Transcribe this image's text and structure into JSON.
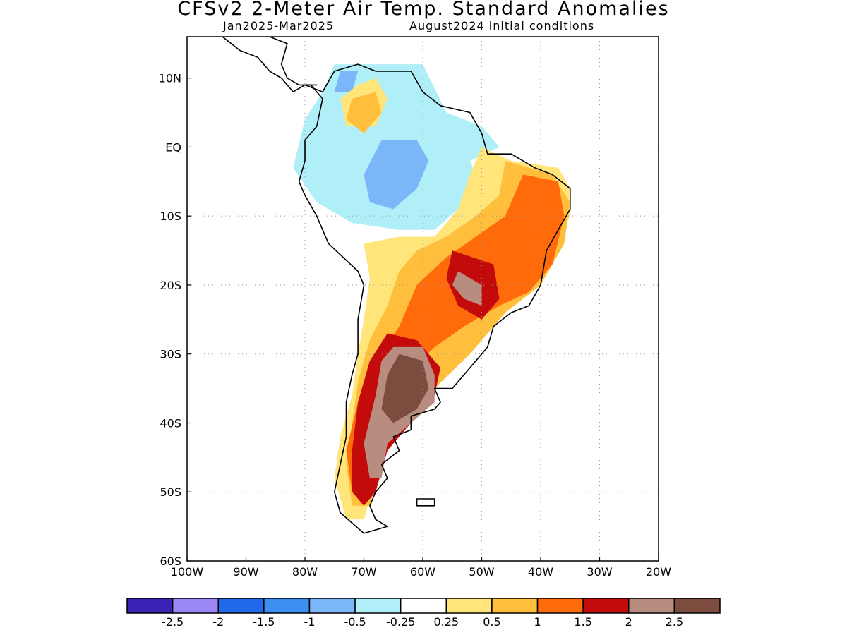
{
  "title": "CFSv2 2-Meter Air Temp. Standard Anomalies",
  "subtitle_period": "Jan2025-Mar2025",
  "subtitle_init": "August2024 initial conditions",
  "map": {
    "lon_range": [
      -100,
      -20
    ],
    "lat_range": [
      -60,
      16
    ],
    "lon_ticks": [
      {
        "value": -100,
        "label": "100W"
      },
      {
        "value": -90,
        "label": "90W"
      },
      {
        "value": -80,
        "label": "80W"
      },
      {
        "value": -70,
        "label": "70W"
      },
      {
        "value": -60,
        "label": "60W"
      },
      {
        "value": -50,
        "label": "50W"
      },
      {
        "value": -40,
        "label": "40W"
      },
      {
        "value": -30,
        "label": "30W"
      },
      {
        "value": -20,
        "label": "20W"
      }
    ],
    "lat_ticks": [
      {
        "value": 10,
        "label": "10N"
      },
      {
        "value": 0,
        "label": "EQ"
      },
      {
        "value": -10,
        "label": "10S"
      },
      {
        "value": -20,
        "label": "20S"
      },
      {
        "value": -30,
        "label": "30S"
      },
      {
        "value": -40,
        "label": "40S"
      },
      {
        "value": -50,
        "label": "50S"
      },
      {
        "value": -60,
        "label": "60S"
      }
    ],
    "grid": "dotted"
  },
  "colorbar": {
    "colors": [
      "#3b22b4",
      "#9b87f5",
      "#1f69ea",
      "#3b90f0",
      "#7bb6f8",
      "#b0eef8",
      "#ffffff",
      "#ffe57a",
      "#ffbe3c",
      "#ff6a0a",
      "#c40b0b",
      "#b88c7e",
      "#7c4c3e"
    ],
    "labels": [
      "-2.5",
      "-2",
      "-1.5",
      "-1",
      "-0.5",
      "-0.25",
      "0.25",
      "0.5",
      "1",
      "1.5",
      "2",
      "2.5"
    ]
  },
  "anomaly_regions": [
    {
      "level": "-0.25",
      "color": "#b0eef8",
      "points": [
        [
          -75,
          12
        ],
        [
          -60,
          12
        ],
        [
          -56,
          5
        ],
        [
          -50,
          3
        ],
        [
          -47,
          0
        ],
        [
          -52,
          -2
        ],
        [
          -50,
          -6
        ],
        [
          -54,
          -9
        ],
        [
          -58,
          -12
        ],
        [
          -64,
          -12
        ],
        [
          -72,
          -11
        ],
        [
          -78,
          -8
        ],
        [
          -82,
          -3
        ],
        [
          -80,
          4
        ],
        [
          -77,
          8
        ]
      ]
    },
    {
      "level": "-0.5",
      "color": "#7bb6f8",
      "points": [
        [
          -67,
          1
        ],
        [
          -61,
          1
        ],
        [
          -59,
          -2
        ],
        [
          -61,
          -6
        ],
        [
          -65,
          -9
        ],
        [
          -69,
          -8
        ],
        [
          -70,
          -4
        ]
      ]
    },
    {
      "level": "-0.5",
      "color": "#7bb6f8",
      "points": [
        [
          -74,
          11
        ],
        [
          -71,
          11
        ],
        [
          -72,
          8
        ],
        [
          -75,
          8
        ]
      ]
    },
    {
      "level": "0.5",
      "color": "#ffe57a",
      "points": [
        [
          -50,
          0
        ],
        [
          -45,
          -2
        ],
        [
          -37,
          -3
        ],
        [
          -35,
          -6
        ],
        [
          -35,
          -10
        ],
        [
          -38,
          -15
        ],
        [
          -40,
          -20
        ],
        [
          -45,
          -23
        ],
        [
          -50,
          -27
        ],
        [
          -53,
          -30
        ],
        [
          -58,
          -33
        ],
        [
          -63,
          -38
        ],
        [
          -66,
          -42
        ],
        [
          -68,
          -48
        ],
        [
          -70,
          -54
        ],
        [
          -73,
          -54
        ],
        [
          -75,
          -48
        ],
        [
          -74,
          -42
        ],
        [
          -72,
          -36
        ],
        [
          -71,
          -30
        ],
        [
          -70,
          -25
        ],
        [
          -69,
          -19
        ],
        [
          -70,
          -14
        ],
        [
          -64,
          -13
        ],
        [
          -58,
          -13
        ],
        [
          -54,
          -9
        ],
        [
          -52,
          -4
        ]
      ]
    },
    {
      "level": "0.5",
      "color": "#ffe57a",
      "points": [
        [
          -71,
          9
        ],
        [
          -68,
          10
        ],
        [
          -66,
          7
        ],
        [
          -68,
          3
        ],
        [
          -73,
          3
        ],
        [
          -74,
          7
        ]
      ]
    },
    {
      "level": "1",
      "color": "#ffbe3c",
      "points": [
        [
          -46,
          -2
        ],
        [
          -38,
          -4
        ],
        [
          -35,
          -8
        ],
        [
          -36,
          -14
        ],
        [
          -40,
          -20
        ],
        [
          -46,
          -24
        ],
        [
          -52,
          -30
        ],
        [
          -58,
          -35
        ],
        [
          -64,
          -40
        ],
        [
          -67,
          -46
        ],
        [
          -69,
          -52
        ],
        [
          -72,
          -52
        ],
        [
          -73,
          -46
        ],
        [
          -72,
          -40
        ],
        [
          -71,
          -34
        ],
        [
          -69,
          -28
        ],
        [
          -66,
          -23
        ],
        [
          -64,
          -18
        ],
        [
          -61,
          -15
        ],
        [
          -56,
          -13
        ],
        [
          -51,
          -10
        ],
        [
          -47,
          -7
        ]
      ]
    },
    {
      "level": "1",
      "color": "#ffbe3c",
      "points": [
        [
          -72,
          7
        ],
        [
          -68,
          8
        ],
        [
          -67,
          5
        ],
        [
          -70,
          2
        ],
        [
          -73,
          4
        ]
      ]
    },
    {
      "level": "1.5",
      "color": "#ff6a0a",
      "points": [
        [
          -43,
          -4
        ],
        [
          -37,
          -5
        ],
        [
          -36,
          -10
        ],
        [
          -38,
          -17
        ],
        [
          -42,
          -21
        ],
        [
          -47,
          -23
        ],
        [
          -53,
          -26
        ],
        [
          -58,
          -29
        ],
        [
          -64,
          -34
        ],
        [
          -67,
          -42
        ],
        [
          -69,
          -49
        ],
        [
          -72,
          -50
        ],
        [
          -73,
          -44
        ],
        [
          -71,
          -37
        ],
        [
          -68,
          -31
        ],
        [
          -64,
          -26
        ],
        [
          -61,
          -20
        ],
        [
          -56,
          -16
        ],
        [
          -51,
          -13
        ],
        [
          -46,
          -10
        ]
      ]
    },
    {
      "level": "2",
      "color": "#c40b0b",
      "points": [
        [
          -55,
          -15
        ],
        [
          -48,
          -17
        ],
        [
          -47,
          -22
        ],
        [
          -50,
          -25
        ],
        [
          -54,
          -23
        ],
        [
          -56,
          -19
        ]
      ]
    },
    {
      "level": "2",
      "color": "#c40b0b",
      "points": [
        [
          -66,
          -27
        ],
        [
          -61,
          -28
        ],
        [
          -57,
          -32
        ],
        [
          -58,
          -36
        ],
        [
          -62,
          -40
        ],
        [
          -66,
          -44
        ],
        [
          -68,
          -50
        ],
        [
          -70,
          -52
        ],
        [
          -72,
          -50
        ],
        [
          -72,
          -44
        ],
        [
          -71,
          -37
        ],
        [
          -69,
          -31
        ]
      ]
    },
    {
      "level": "2.5",
      "color": "#b88c7e",
      "points": [
        [
          -54,
          -18
        ],
        [
          -50,
          -20
        ],
        [
          -50,
          -23
        ],
        [
          -53,
          -22
        ],
        [
          -55,
          -20
        ]
      ]
    },
    {
      "level": "2.5",
      "color": "#b88c7e",
      "points": [
        [
          -65,
          -29
        ],
        [
          -60,
          -29
        ],
        [
          -58,
          -33
        ],
        [
          -58,
          -37
        ],
        [
          -62,
          -40
        ],
        [
          -66,
          -43
        ],
        [
          -67,
          -48
        ],
        [
          -69,
          -48
        ],
        [
          -70,
          -43
        ],
        [
          -68,
          -36
        ],
        [
          -67,
          -31
        ]
      ]
    },
    {
      "level": "2.5+",
      "color": "#7c4c3e",
      "points": [
        [
          -64,
          -30
        ],
        [
          -60,
          -31
        ],
        [
          -59,
          -35
        ],
        [
          -61,
          -38
        ],
        [
          -65,
          -40
        ],
        [
          -67,
          -38
        ],
        [
          -66,
          -33
        ]
      ]
    }
  ],
  "coastlines": [
    [
      [
        -80,
        9
      ],
      [
        -77,
        8
      ],
      [
        -75,
        11
      ],
      [
        -71,
        12
      ],
      [
        -68,
        11
      ],
      [
        -62,
        11
      ],
      [
        -60,
        8
      ],
      [
        -57,
        6
      ],
      [
        -52,
        5
      ],
      [
        -50,
        2
      ],
      [
        -49,
        -1
      ],
      [
        -45,
        -1
      ],
      [
        -41,
        -3
      ],
      [
        -38,
        -4
      ],
      [
        -35,
        -6
      ],
      [
        -35,
        -9
      ],
      [
        -37,
        -12
      ],
      [
        -39,
        -15
      ],
      [
        -40,
        -20
      ],
      [
        -42,
        -23
      ],
      [
        -45,
        -24
      ],
      [
        -48,
        -26
      ],
      [
        -49,
        -29
      ],
      [
        -51,
        -31
      ],
      [
        -53,
        -33
      ],
      [
        -55,
        -35
      ],
      [
        -58,
        -35
      ],
      [
        -57,
        -37
      ],
      [
        -58,
        -38
      ],
      [
        -62,
        -39
      ],
      [
        -62,
        -41
      ],
      [
        -65,
        -42
      ],
      [
        -64,
        -44
      ],
      [
        -67,
        -46
      ],
      [
        -66,
        -48
      ],
      [
        -68,
        -50
      ],
      [
        -69,
        -52
      ],
      [
        -68,
        -54
      ],
      [
        -66,
        -55
      ],
      [
        -70,
        -56
      ],
      [
        -74,
        -53
      ],
      [
        -75,
        -50
      ],
      [
        -74,
        -46
      ],
      [
        -73,
        -42
      ],
      [
        -73,
        -37
      ],
      [
        -72,
        -33
      ],
      [
        -71,
        -30
      ],
      [
        -71,
        -25
      ],
      [
        -70,
        -20
      ],
      [
        -71,
        -18
      ],
      [
        -76,
        -14
      ],
      [
        -78,
        -10
      ],
      [
        -80,
        -7
      ],
      [
        -81,
        -5
      ],
      [
        -80,
        -2
      ],
      [
        -80,
        1
      ],
      [
        -78,
        3
      ],
      [
        -77,
        7
      ],
      [
        -79,
        9
      ]
    ],
    [
      [
        -100,
        16
      ],
      [
        -94,
        16
      ],
      [
        -91,
        14
      ],
      [
        -88,
        13
      ],
      [
        -86,
        11
      ],
      [
        -84,
        10
      ],
      [
        -82,
        8
      ],
      [
        -80,
        9
      ],
      [
        -79,
        9
      ],
      [
        -78,
        9
      ],
      [
        -81,
        9
      ],
      [
        -83,
        10
      ],
      [
        -84,
        12
      ],
      [
        -83,
        15
      ],
      [
        -86,
        16
      ],
      [
        -88,
        16
      ]
    ],
    [
      [
        -61,
        -51
      ],
      [
        -58,
        -51
      ],
      [
        -58,
        -52
      ],
      [
        -61,
        -52
      ]
    ]
  ]
}
